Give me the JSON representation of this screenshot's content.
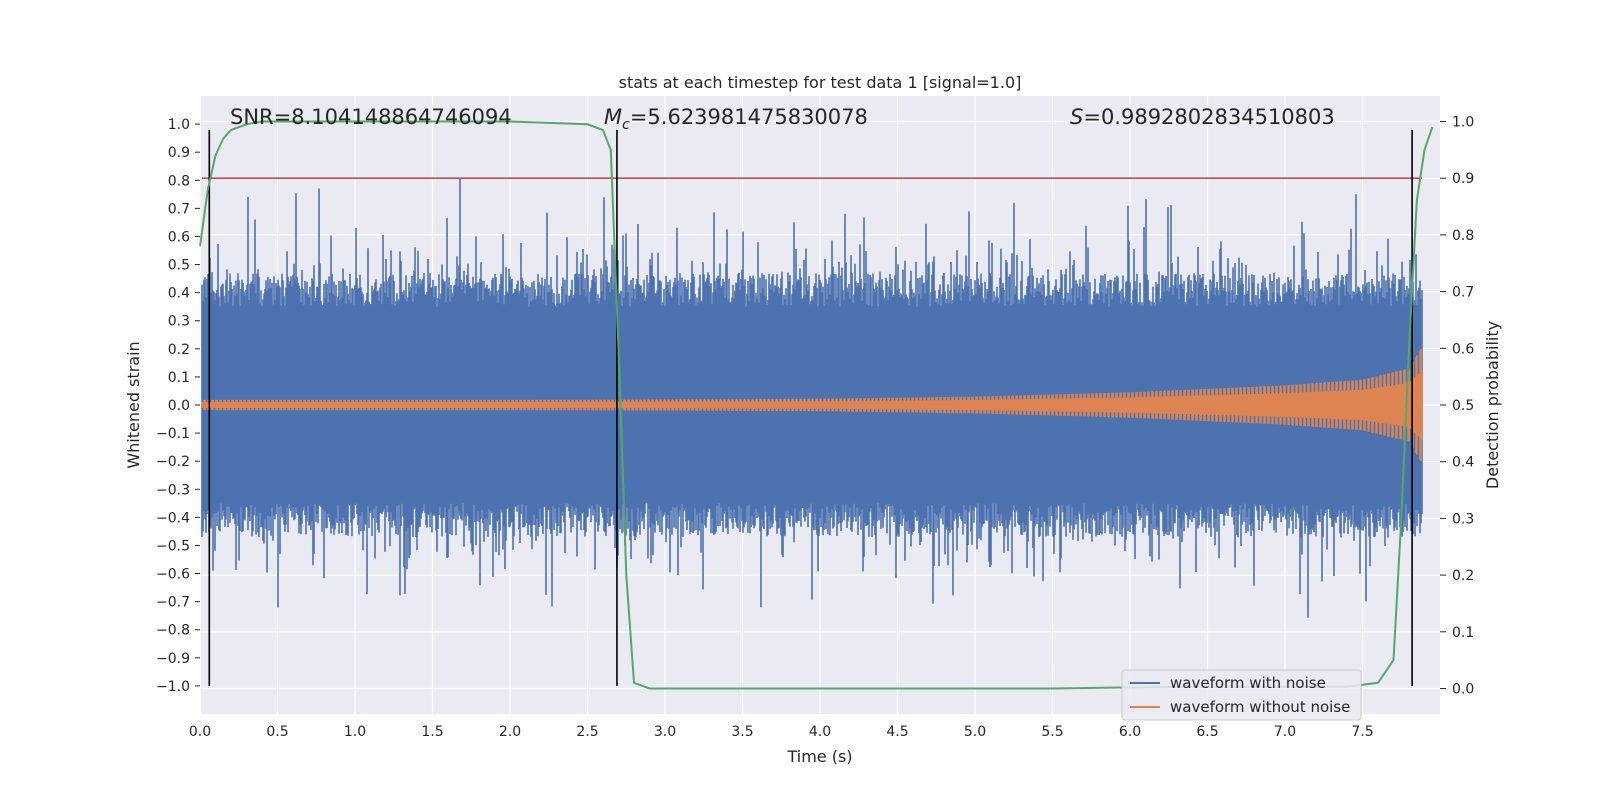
{
  "chart_data": {
    "type": "line",
    "title": "stats at each timestep for test data 1 [signal=1.0]",
    "xlabel": "Time (s)",
    "ylabel": "Whitened strain",
    "y2label": "Detection probability",
    "xlim": [
      0,
      8.0
    ],
    "ylim": [
      -1.1,
      1.1
    ],
    "y2lim": [
      -0.045,
      1.045
    ],
    "x_ticks": [
      "0.0",
      "0.5",
      "1.0",
      "1.5",
      "2.0",
      "2.5",
      "3.0",
      "3.5",
      "4.0",
      "4.5",
      "5.0",
      "5.5",
      "6.0",
      "6.5",
      "7.0",
      "7.5"
    ],
    "y_ticks": [
      "1.0",
      "0.9",
      "0.8",
      "0.7",
      "0.6",
      "0.5",
      "0.4",
      "0.3",
      "0.2",
      "0.1",
      "0.0",
      "−0.1",
      "−0.2",
      "−0.3",
      "−0.4",
      "−0.5",
      "−0.6",
      "−0.7",
      "−0.8",
      "−0.9",
      "−1.0"
    ],
    "y2_ticks": [
      "1.0",
      "0.9",
      "0.8",
      "0.7",
      "0.6",
      "0.5",
      "0.4",
      "0.3",
      "0.2",
      "0.1",
      "0.0"
    ],
    "annotations": {
      "snr": "SNR=8.104148864746094",
      "mc_symbol": "M",
      "mc_sub": "c",
      "mc_value": "=5.623981475830078",
      "s_symbol": "S",
      "s_value": "=0.9892802834510803"
    },
    "threshold_y2": 0.9,
    "vertical_lines_x": [
      0.06,
      2.69,
      7.82
    ],
    "series": [
      {
        "name": "waveform with noise",
        "color": "#4c72b0",
        "description_values": "noise amplitude approx ±0.5 with peaks to ±0.98"
      },
      {
        "name": "waveform without noise",
        "color": "#dd8452",
        "envelope": {
          "t": [
            0,
            2,
            4,
            5,
            6,
            7,
            7.5,
            7.8,
            7.9,
            8.0
          ],
          "amp": [
            0.018,
            0.018,
            0.022,
            0.03,
            0.045,
            0.07,
            0.09,
            0.13,
            0.22,
            0.02
          ]
        }
      },
      {
        "name": "detection probability",
        "color": "#55a868",
        "axis": "right",
        "x": [
          0.0,
          0.05,
          0.1,
          0.15,
          0.2,
          0.3,
          0.4,
          0.5,
          1.0,
          2.0,
          2.5,
          2.6,
          2.65,
          2.7,
          2.75,
          2.8,
          2.9,
          3.0,
          4.0,
          5.0,
          5.5,
          6.0,
          6.5,
          7.0,
          7.4,
          7.6,
          7.7,
          7.75,
          7.8,
          7.85,
          7.9,
          7.95
        ],
        "y": [
          0.78,
          0.88,
          0.94,
          0.97,
          0.985,
          0.995,
          1.0,
          1.0,
          1.0,
          1.0,
          0.995,
          0.985,
          0.95,
          0.6,
          0.2,
          0.01,
          0.0,
          0.0,
          0.0,
          0.0,
          0.0,
          0.002,
          0.003,
          0.003,
          0.003,
          0.01,
          0.05,
          0.3,
          0.6,
          0.86,
          0.95,
          0.99
        ]
      }
    ],
    "legend": {
      "placement": "lower-right",
      "entries": [
        {
          "label": "waveform with noise",
          "color": "#4c72b0"
        },
        {
          "label": "waveform without noise",
          "color": "#dd8452"
        }
      ]
    },
    "colors": {
      "background": "#eaeaf2",
      "grid": "#ffffff",
      "threshold": "#c44e52",
      "vline": "#000000"
    }
  }
}
